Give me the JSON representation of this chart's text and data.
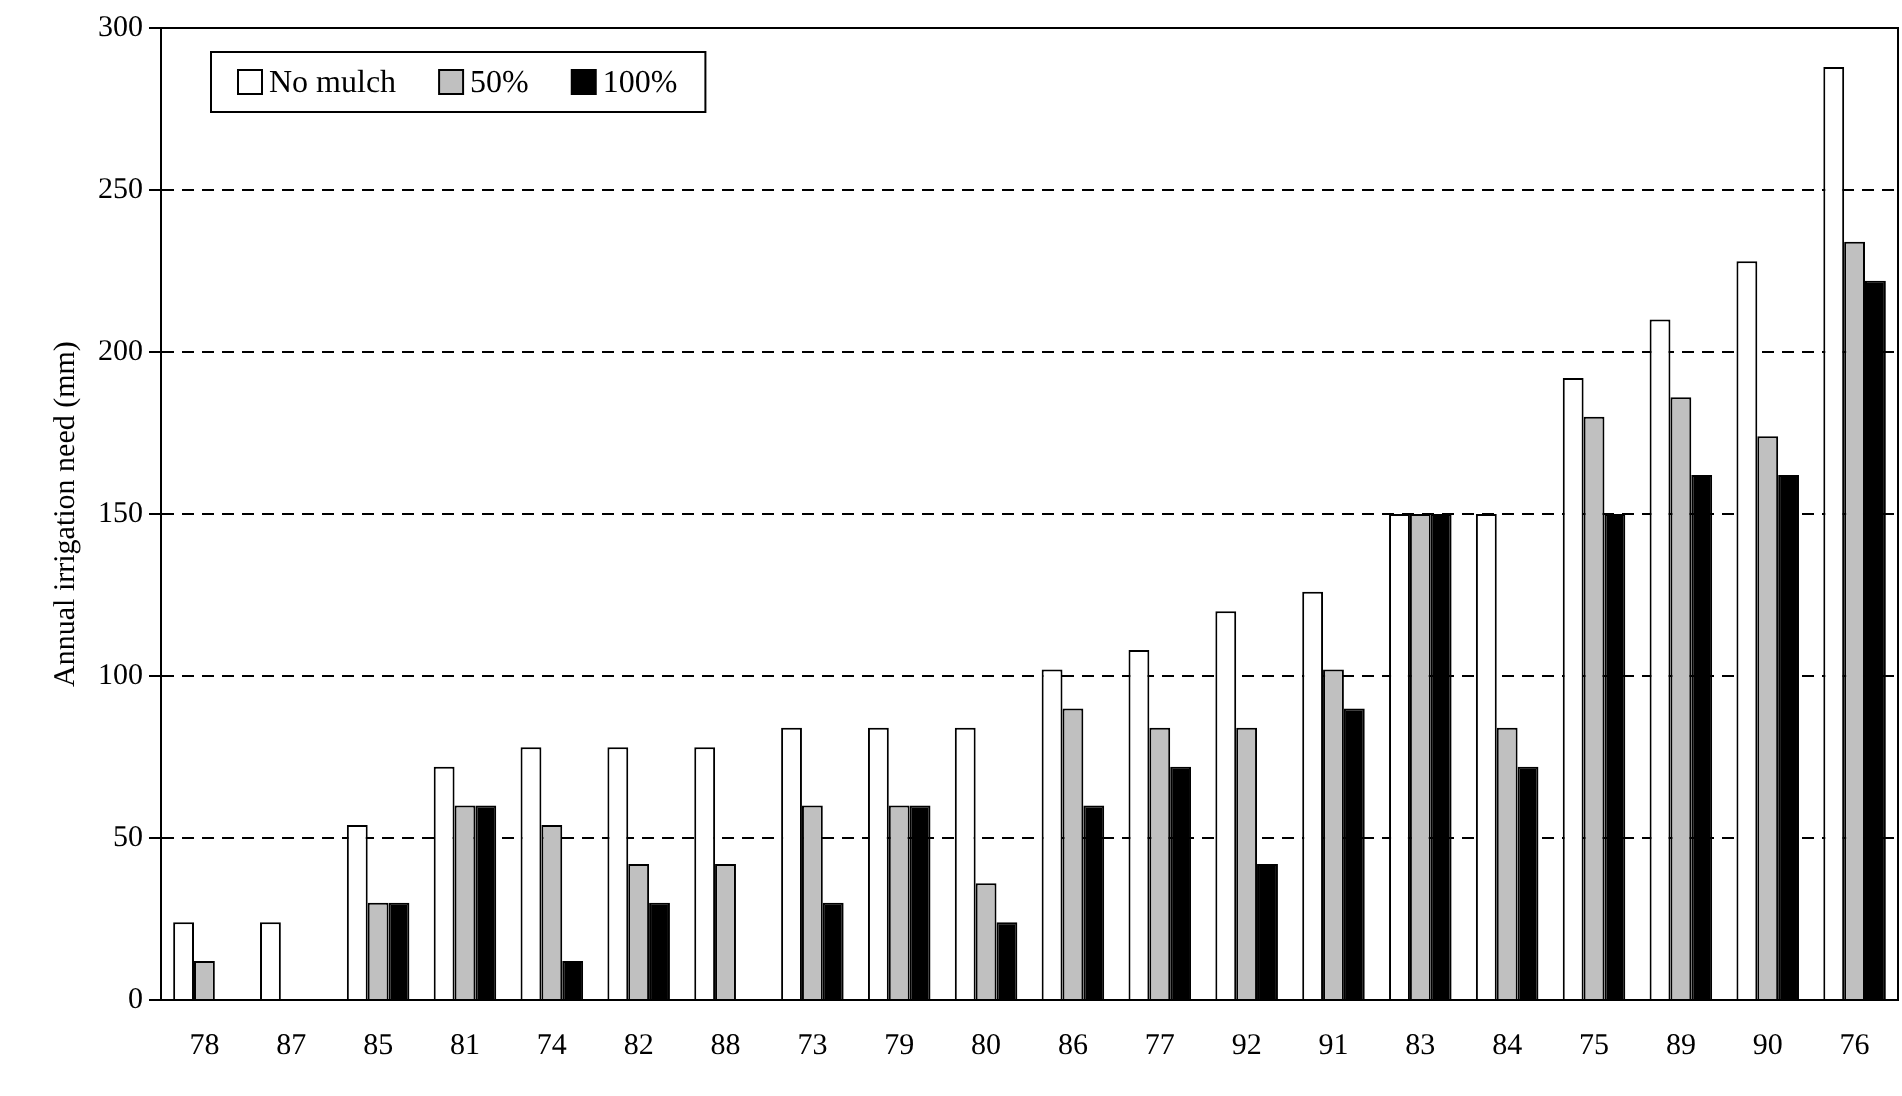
{
  "chart_data": {
    "type": "bar",
    "ylabel": "Annual irrigation need (mm)",
    "categories": [
      "78",
      "87",
      "85",
      "81",
      "74",
      "82",
      "88",
      "73",
      "79",
      "80",
      "86",
      "77",
      "92",
      "91",
      "83",
      "84",
      "75",
      "89",
      "90",
      "76"
    ],
    "series": [
      {
        "name": "No mulch",
        "color": "#ffffff",
        "values": [
          24,
          24,
          54,
          72,
          78,
          78,
          78,
          84,
          84,
          84,
          102,
          108,
          120,
          126,
          150,
          150,
          192,
          210,
          228,
          288
        ]
      },
      {
        "name": "50%",
        "color": "#c0c0c0",
        "values": [
          12,
          0,
          30,
          60,
          54,
          42,
          42,
          60,
          60,
          36,
          90,
          84,
          84,
          102,
          150,
          84,
          180,
          186,
          174,
          234
        ]
      },
      {
        "name": "100%",
        "color": "#000000",
        "values": [
          0,
          0,
          30,
          60,
          12,
          30,
          0,
          30,
          60,
          24,
          60,
          72,
          42,
          90,
          150,
          72,
          150,
          162,
          162,
          222
        ]
      }
    ],
    "ylim": [
      0,
      300
    ],
    "yticks": [
      0,
      50,
      100,
      150,
      200,
      250,
      300
    ],
    "grid": "y",
    "legend": "top left"
  }
}
